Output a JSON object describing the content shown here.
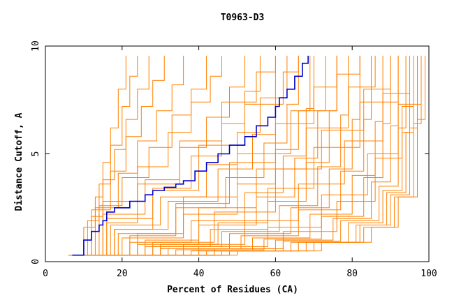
{
  "chart_data": {
    "type": "line",
    "title": "T0963-D3",
    "xlabel": "Percent of Residues (CA)",
    "ylabel": "Distance Cutoff, A",
    "xlim": [
      0,
      100
    ],
    "ylim": [
      0,
      10
    ],
    "x_ticks": [
      "0",
      "20",
      "40",
      "60",
      "80",
      "100"
    ],
    "y_ticks": [
      "0",
      "5",
      "10"
    ],
    "grid": false,
    "legend": "none",
    "colors": {
      "highlight": "#0000cc",
      "others": "#ff8000"
    },
    "highlight_series": {
      "points": [
        [
          7,
          0.3
        ],
        [
          10,
          1.0
        ],
        [
          12,
          1.4
        ],
        [
          14,
          1.7
        ],
        [
          15,
          1.9
        ],
        [
          16,
          2.3
        ],
        [
          18,
          2.5
        ],
        [
          22,
          2.8
        ],
        [
          26,
          3.1
        ],
        [
          28,
          3.3
        ],
        [
          31,
          3.45
        ],
        [
          34,
          3.6
        ],
        [
          36,
          3.75
        ],
        [
          39,
          4.2
        ],
        [
          42,
          4.6
        ],
        [
          45,
          5.0
        ],
        [
          48,
          5.4
        ],
        [
          52,
          5.8
        ],
        [
          55,
          6.3
        ],
        [
          58,
          6.7
        ],
        [
          60,
          7.2
        ],
        [
          61,
          7.6
        ],
        [
          63,
          8.0
        ],
        [
          65,
          8.6
        ],
        [
          67,
          9.2
        ],
        [
          68.5,
          9.55
        ]
      ]
    },
    "series": [
      {
        "points": [
          [
            6,
            0.3
          ],
          [
            10,
            1.6
          ],
          [
            13,
            3.0
          ],
          [
            15,
            4.6
          ],
          [
            17,
            6.2
          ],
          [
            19,
            8.0
          ],
          [
            21,
            9.55
          ]
        ]
      },
      {
        "points": [
          [
            6,
            0.3
          ],
          [
            11,
            1.9
          ],
          [
            14,
            3.6
          ],
          [
            17,
            5.4
          ],
          [
            20,
            7.2
          ],
          [
            22,
            8.6
          ],
          [
            24,
            9.55
          ]
        ]
      },
      {
        "points": [
          [
            6.5,
            0.3
          ],
          [
            12,
            2.1
          ],
          [
            15,
            3.8
          ],
          [
            18,
            5.2
          ],
          [
            21,
            6.6
          ],
          [
            24,
            8.0
          ],
          [
            27,
            9.55
          ]
        ]
      },
      {
        "points": [
          [
            6.5,
            0.3
          ],
          [
            12,
            2.4
          ],
          [
            17,
            4.2
          ],
          [
            21,
            5.8
          ],
          [
            25,
            7.2
          ],
          [
            28,
            8.4
          ],
          [
            31,
            9.55
          ]
        ]
      },
      {
        "points": [
          [
            7,
            0.3
          ],
          [
            13,
            2.5
          ],
          [
            19,
            4.1
          ],
          [
            24,
            5.6
          ],
          [
            29,
            7.0
          ],
          [
            33,
            8.2
          ],
          [
            36,
            9.55
          ]
        ]
      },
      {
        "points": [
          [
            7,
            0.3
          ],
          [
            14,
            2.6
          ],
          [
            20,
            3.9
          ],
          [
            27,
            5.3
          ],
          [
            33,
            6.8
          ],
          [
            38,
            8.0
          ],
          [
            42,
            9.55
          ]
        ]
      },
      {
        "points": [
          [
            7,
            0.3
          ],
          [
            15,
            2.8
          ],
          [
            24,
            4.4
          ],
          [
            32,
            6.0
          ],
          [
            38,
            7.4
          ],
          [
            43,
            8.6
          ],
          [
            46,
            9.55
          ]
        ]
      },
      {
        "points": [
          [
            7.5,
            0.3
          ],
          [
            15,
            2.2
          ],
          [
            26,
            3.8
          ],
          [
            35,
            5.3
          ],
          [
            42,
            6.7
          ],
          [
            48,
            8.1
          ],
          [
            52,
            9.55
          ]
        ]
      },
      {
        "points": [
          [
            7.5,
            0.3
          ],
          [
            16,
            2.0
          ],
          [
            28,
            3.4
          ],
          [
            38,
            4.9
          ],
          [
            46,
            6.4
          ],
          [
            52,
            7.9
          ],
          [
            56,
            9.55
          ]
        ]
      },
      {
        "points": [
          [
            8,
            0.3
          ],
          [
            17,
            1.7
          ],
          [
            30,
            3.0
          ],
          [
            42,
            4.5
          ],
          [
            50,
            6.0
          ],
          [
            56,
            7.6
          ],
          [
            60,
            9.55
          ]
        ]
      },
      {
        "points": [
          [
            8,
            0.3
          ],
          [
            18,
            1.5
          ],
          [
            32,
            2.8
          ],
          [
            45,
            4.3
          ],
          [
            54,
            5.9
          ],
          [
            60,
            7.6
          ],
          [
            63,
            9.55
          ]
        ]
      },
      {
        "points": [
          [
            8.5,
            0.3
          ],
          [
            19,
            1.3
          ],
          [
            34,
            2.5
          ],
          [
            47,
            3.9
          ],
          [
            57,
            5.5
          ],
          [
            63,
            7.3
          ],
          [
            66,
            9.55
          ]
        ]
      },
      {
        "points": [
          [
            9,
            0.3
          ],
          [
            20,
            1.1
          ],
          [
            36,
            2.2
          ],
          [
            50,
            3.6
          ],
          [
            60,
            5.2
          ],
          [
            66,
            7.0
          ],
          [
            69,
            9.55
          ]
        ]
      },
      {
        "points": [
          [
            10,
            0.3
          ],
          [
            22,
            0.9
          ],
          [
            38,
            1.9
          ],
          [
            52,
            3.2
          ],
          [
            62,
            4.9
          ],
          [
            68,
            7.1
          ],
          [
            70,
            9.55
          ]
        ]
      },
      {
        "points": [
          [
            11,
            0.3
          ],
          [
            24,
            0.8
          ],
          [
            40,
            1.7
          ],
          [
            55,
            3.0
          ],
          [
            65,
            4.8
          ],
          [
            71,
            7.0
          ],
          [
            73,
            9.55
          ]
        ]
      },
      {
        "points": [
          [
            12,
            0.3
          ],
          [
            26,
            0.7
          ],
          [
            43,
            1.5
          ],
          [
            58,
            2.8
          ],
          [
            68,
            4.6
          ],
          [
            74,
            7.0
          ],
          [
            76,
            9.55
          ]
        ]
      },
      {
        "points": [
          [
            13,
            0.3
          ],
          [
            28,
            0.7
          ],
          [
            46,
            1.4
          ],
          [
            61,
            2.6
          ],
          [
            71,
            4.4
          ],
          [
            77,
            6.8
          ],
          [
            79,
            9.55
          ]
        ]
      },
      {
        "points": [
          [
            14,
            0.3
          ],
          [
            30,
            0.6
          ],
          [
            48,
            1.3
          ],
          [
            64,
            2.5
          ],
          [
            74,
            4.3
          ],
          [
            80,
            6.6
          ],
          [
            82,
            9.55
          ]
        ]
      },
      {
        "points": [
          [
            15,
            0.3
          ],
          [
            32,
            0.6
          ],
          [
            51,
            1.2
          ],
          [
            66,
            2.4
          ],
          [
            77,
            4.2
          ],
          [
            83,
            6.6
          ],
          [
            85,
            9.55
          ]
        ]
      },
      {
        "points": [
          [
            16,
            0.3
          ],
          [
            34,
            0.55
          ],
          [
            54,
            1.1
          ],
          [
            69,
            2.2
          ],
          [
            80,
            4.0
          ],
          [
            86,
            6.5
          ],
          [
            88,
            9.55
          ]
        ]
      },
      {
        "points": [
          [
            17,
            0.3
          ],
          [
            36,
            0.55
          ],
          [
            57,
            1.05
          ],
          [
            72,
            2.1
          ],
          [
            83,
            3.9
          ],
          [
            88,
            6.4
          ],
          [
            90,
            9.55
          ]
        ]
      },
      {
        "points": [
          [
            18,
            0.3
          ],
          [
            38,
            0.5
          ],
          [
            60,
            1.0
          ],
          [
            75,
            2.0
          ],
          [
            85,
            3.7
          ],
          [
            90,
            6.3
          ],
          [
            92,
            9.55
          ]
        ]
      },
      {
        "points": [
          [
            19,
            0.3
          ],
          [
            40,
            0.5
          ],
          [
            62,
            0.95
          ],
          [
            77,
            1.9
          ],
          [
            87,
            3.5
          ],
          [
            92,
            6.2
          ],
          [
            94,
            9.55
          ]
        ]
      },
      {
        "points": [
          [
            20,
            0.3
          ],
          [
            42,
            0.5
          ],
          [
            64,
            0.9
          ],
          [
            79,
            1.8
          ],
          [
            88,
            3.3
          ],
          [
            93,
            6.0
          ],
          [
            95,
            9.55
          ]
        ]
      },
      {
        "points": [
          [
            21,
            0.3
          ],
          [
            44,
            0.5
          ],
          [
            66,
            0.9
          ],
          [
            81,
            1.7
          ],
          [
            89,
            3.2
          ],
          [
            94,
            6.0
          ],
          [
            96,
            9.55
          ]
        ]
      },
      {
        "points": [
          [
            22,
            0.3
          ],
          [
            46,
            0.5
          ],
          [
            68,
            0.9
          ],
          [
            82,
            1.7
          ],
          [
            90,
            3.1
          ],
          [
            95,
            6.2
          ],
          [
            97,
            9.55
          ]
        ]
      },
      {
        "points": [
          [
            23,
            0.3
          ],
          [
            48,
            0.5
          ],
          [
            70,
            0.9
          ],
          [
            83,
            1.6
          ],
          [
            91,
            3.0
          ],
          [
            96,
            6.4
          ],
          [
            98,
            9.55
          ]
        ]
      },
      {
        "points": [
          [
            24,
            0.3
          ],
          [
            50,
            0.5
          ],
          [
            72,
            0.9
          ],
          [
            85,
            1.6
          ],
          [
            92,
            3.0
          ],
          [
            97,
            6.6
          ],
          [
            99,
            9.55
          ]
        ]
      },
      {
        "points": [
          [
            18,
            0.3
          ],
          [
            30,
            0.8
          ],
          [
            45,
            1.8
          ],
          [
            58,
            3.4
          ],
          [
            70,
            5.3
          ],
          [
            82,
            7.4
          ],
          [
            92,
            9.55
          ]
        ]
      },
      {
        "points": [
          [
            16,
            0.3
          ],
          [
            28,
            0.9
          ],
          [
            44,
            2.3
          ],
          [
            60,
            4.3
          ],
          [
            72,
            6.1
          ],
          [
            83,
            8.0
          ],
          [
            90,
            9.55
          ]
        ]
      },
      {
        "points": [
          [
            14,
            0.3
          ],
          [
            26,
            1.0
          ],
          [
            40,
            2.5
          ],
          [
            55,
            4.3
          ],
          [
            68,
            6.2
          ],
          [
            79,
            8.1
          ],
          [
            86,
            9.55
          ]
        ]
      },
      {
        "points": [
          [
            12,
            0.3
          ],
          [
            22,
            1.2
          ],
          [
            34,
            2.7
          ],
          [
            48,
            4.6
          ],
          [
            60,
            6.4
          ],
          [
            70,
            8.1
          ],
          [
            76,
            9.55
          ]
        ]
      },
      {
        "points": [
          [
            20,
            0.3
          ],
          [
            36,
            0.8
          ],
          [
            52,
            1.9
          ],
          [
            66,
            3.6
          ],
          [
            78,
            5.6
          ],
          [
            88,
            7.8
          ],
          [
            95,
            9.55
          ]
        ]
      },
      {
        "points": [
          [
            22,
            0.3
          ],
          [
            40,
            0.7
          ],
          [
            58,
            1.6
          ],
          [
            72,
            3.1
          ],
          [
            84,
            5.0
          ],
          [
            92,
            7.3
          ],
          [
            98,
            9.55
          ]
        ]
      },
      {
        "points": [
          [
            10,
            0.3
          ],
          [
            18,
            1.5
          ],
          [
            28,
            3.3
          ],
          [
            40,
            5.4
          ],
          [
            52,
            7.3
          ],
          [
            62,
            8.8
          ],
          [
            66,
            9.55
          ]
        ]
      },
      {
        "points": [
          [
            9,
            0.3
          ],
          [
            16,
            1.8
          ],
          [
            24,
            3.6
          ],
          [
            35,
            5.6
          ],
          [
            46,
            7.4
          ],
          [
            55,
            8.8
          ],
          [
            60,
            9.55
          ]
        ]
      },
      {
        "points": [
          [
            25,
            0.3
          ],
          [
            44,
            0.6
          ],
          [
            62,
            1.4
          ],
          [
            76,
            2.8
          ],
          [
            86,
            4.8
          ],
          [
            93,
            7.2
          ],
          [
            96,
            9.55
          ]
        ]
      },
      {
        "points": [
          [
            15,
            0.3
          ],
          [
            24,
            1.3
          ],
          [
            36,
            3.0
          ],
          [
            50,
            5.0
          ],
          [
            64,
            7.0
          ],
          [
            76,
            8.7
          ],
          [
            82,
            9.55
          ]
        ]
      }
    ]
  }
}
